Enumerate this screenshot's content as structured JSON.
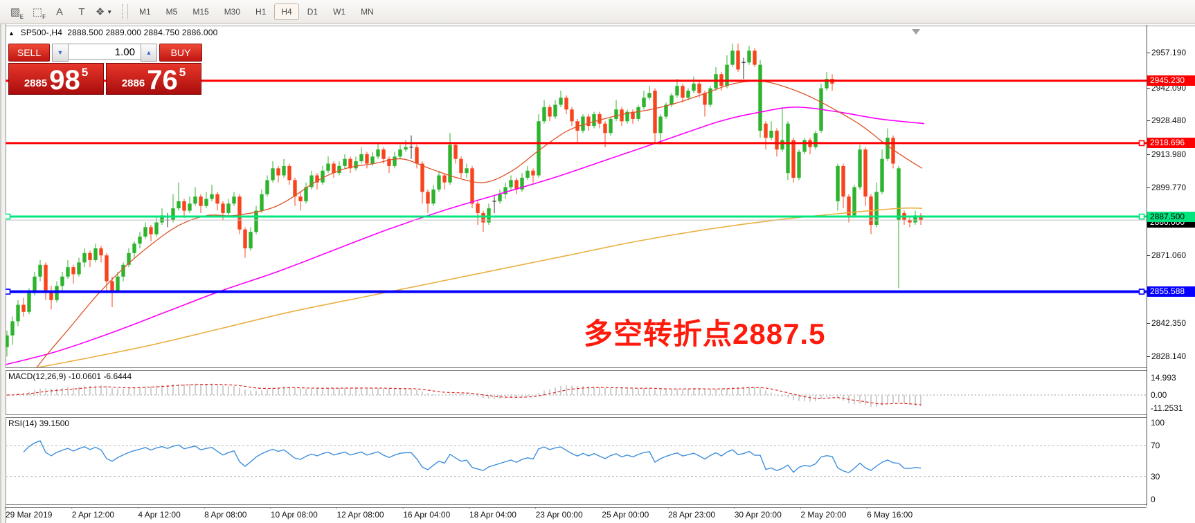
{
  "toolbar": {
    "tools": [
      {
        "name": "expert-hatch-icon",
        "glyph": "▨",
        "sub": "E"
      },
      {
        "name": "grid-pattern-icon",
        "glyph": "⬚",
        "sub": "F"
      },
      {
        "name": "text-label-icon",
        "glyph": "A",
        "sub": ""
      },
      {
        "name": "textbox-icon",
        "glyph": "T",
        "sub": ""
      },
      {
        "name": "snap-cursor-icon",
        "glyph": "❖",
        "sub": "",
        "caret": "▼"
      }
    ],
    "timeframes": [
      {
        "label": "M1",
        "active": false
      },
      {
        "label": "M5",
        "active": false
      },
      {
        "label": "M15",
        "active": false
      },
      {
        "label": "M30",
        "active": false
      },
      {
        "label": "H1",
        "active": false
      },
      {
        "label": "H4",
        "active": true
      },
      {
        "label": "D1",
        "active": false
      },
      {
        "label": "W1",
        "active": false
      },
      {
        "label": "MN",
        "active": false
      }
    ]
  },
  "header": {
    "collapse_arrow": "▲",
    "symbol": "SP500-,H4",
    "open": "2888.500",
    "high": "2889.000",
    "low": "2884.750",
    "close": "2886.000"
  },
  "trade_panel": {
    "sell_label": "SELL",
    "buy_label": "BUY",
    "volume": "1.00",
    "spin_down": "▼",
    "spin_up": "▲",
    "sell_price": {
      "handle": "2885",
      "big": "98",
      "sup": "5"
    },
    "buy_price": {
      "handle": "2886",
      "big": "76",
      "sup": "5"
    }
  },
  "annotation": {
    "text": "多空转折点2887.5",
    "color": "#fe1b0c"
  },
  "macd_panel": {
    "label": "MACD(12,26,9)",
    "main_value": "-10.0601",
    "signal_value": "-6.6444",
    "ticks": [
      {
        "label": "14.993",
        "value": 14.993
      },
      {
        "label": "0.00",
        "value": 0.0
      },
      {
        "label": "-11.2531",
        "value": -11.2531
      }
    ]
  },
  "rsi_panel": {
    "label": "RSI(14)",
    "value": "39.1500",
    "ticks": [
      {
        "label": "100",
        "value": 100
      },
      {
        "label": "70",
        "value": 70
      },
      {
        "label": "30",
        "value": 30
      },
      {
        "label": "0",
        "value": 0
      }
    ],
    "dashed_levels": [
      70,
      30
    ]
  },
  "chart_data": {
    "type": "candlestick",
    "symbol": "SP500-",
    "timeframe": "H4",
    "colors": {
      "bull": "#2db32d",
      "bear": "#f8441c",
      "doji": "#2b2b2b",
      "ma_fast": "#dd5226",
      "ma_mid": "#fb00fb",
      "ma_slow": "#e9b041",
      "hline_red": "#fe0000",
      "hline_green": "#00e57d",
      "hline_blue": "#0500fe",
      "bid_line": "#c0c0c0",
      "rsi_line": "#3d8edd",
      "macd_hist": "#cfcfcf",
      "macd_signal": "#e02020"
    },
    "price_ticks": [
      {
        "label": "2957.190",
        "price": 2957.19
      },
      {
        "label": "2942.090",
        "price": 2942.09
      },
      {
        "label": "2928.480",
        "price": 2928.48
      },
      {
        "label": "2913.980",
        "price": 2913.98
      },
      {
        "label": "2899.770",
        "price": 2899.77
      },
      {
        "label": "2871.060",
        "price": 2871.06
      },
      {
        "label": "2842.350",
        "price": 2842.35
      },
      {
        "label": "2828.140",
        "price": 2828.14
      }
    ],
    "hlines": [
      {
        "label": "2945.230",
        "price": 2945.23,
        "color": "#fe0000",
        "width": 3,
        "badge_bg": "#fe0000",
        "badge_fg": "#fff",
        "handles": []
      },
      {
        "label": "2918.696",
        "price": 2918.696,
        "color": "#fe0000",
        "width": 3,
        "badge_bg": "#fe0000",
        "badge_fg": "#fff",
        "handles": [
          1649
        ]
      },
      {
        "label": "2887.500",
        "price": 2887.5,
        "color": "#00e57d",
        "width": 3,
        "badge_bg": "#00e57d",
        "badge_fg": "#000",
        "handles": [
          11,
          1649
        ]
      },
      {
        "label": "2855.588",
        "price": 2855.588,
        "color": "#0500fe",
        "width": 4,
        "badge_bg": "#0500fe",
        "badge_fg": "#fff",
        "handles": [
          11,
          1649
        ]
      }
    ],
    "bid_marker": {
      "label": "2886.000",
      "price": 2886.0,
      "line_color": "#c0c0c0",
      "badge_bg": "#000",
      "badge_fg": "#fff"
    },
    "time_labels": [
      "29 Mar 2019",
      "2 Apr 12:00",
      "4 Apr 12:00",
      "8 Apr 08:00",
      "10 Apr 08:00",
      "12 Apr 08:00",
      "16 Apr 04:00",
      "18 Apr 04:00",
      "23 Apr 00:00",
      "25 Apr 00:00",
      "28 Apr 23:00",
      "30 Apr 20:00",
      "2 May 20:00",
      "6 May 16:00"
    ],
    "ma_fast_points": [
      [
        25,
        2812
      ],
      [
        60,
        2826
      ],
      [
        100,
        2840
      ],
      [
        140,
        2854
      ],
      [
        180,
        2866
      ],
      [
        220,
        2876
      ],
      [
        260,
        2884
      ],
      [
        300,
        2888
      ],
      [
        340,
        2888
      ],
      [
        400,
        2892
      ],
      [
        460,
        2903
      ],
      [
        500,
        2908
      ],
      [
        540,
        2910
      ],
      [
        580,
        2912
      ],
      [
        620,
        2908
      ],
      [
        660,
        2904
      ],
      [
        700,
        2902
      ],
      [
        740,
        2907
      ],
      [
        780,
        2916
      ],
      [
        820,
        2924
      ],
      [
        860,
        2928
      ],
      [
        900,
        2931
      ],
      [
        940,
        2933
      ],
      [
        980,
        2936
      ],
      [
        1020,
        2940
      ],
      [
        1060,
        2944
      ],
      [
        1100,
        2945
      ],
      [
        1140,
        2942
      ],
      [
        1180,
        2937
      ],
      [
        1240,
        2927
      ],
      [
        1280,
        2918
      ],
      [
        1310,
        2912
      ],
      [
        1332,
        2908
      ]
    ],
    "ma_mid_points": [
      [
        0,
        2824
      ],
      [
        80,
        2830
      ],
      [
        160,
        2838
      ],
      [
        240,
        2847
      ],
      [
        320,
        2856
      ],
      [
        400,
        2864
      ],
      [
        480,
        2873
      ],
      [
        560,
        2882
      ],
      [
        640,
        2890
      ],
      [
        720,
        2897
      ],
      [
        800,
        2904
      ],
      [
        880,
        2912
      ],
      [
        960,
        2920
      ],
      [
        1040,
        2928
      ],
      [
        1100,
        2932
      ],
      [
        1150,
        2934
      ],
      [
        1210,
        2932
      ],
      [
        1270,
        2929
      ],
      [
        1335,
        2927
      ]
    ],
    "ma_slow_points": [
      [
        30,
        2822
      ],
      [
        120,
        2827
      ],
      [
        220,
        2833
      ],
      [
        320,
        2840
      ],
      [
        420,
        2847
      ],
      [
        520,
        2853
      ],
      [
        620,
        2859
      ],
      [
        720,
        2865
      ],
      [
        820,
        2871
      ],
      [
        920,
        2877
      ],
      [
        1020,
        2882
      ],
      [
        1120,
        2886
      ],
      [
        1220,
        2889
      ],
      [
        1300,
        2891
      ],
      [
        1332,
        2891
      ]
    ],
    "candles": [
      [
        2832,
        2839,
        2828,
        2837
      ],
      [
        2837,
        2845,
        2833,
        2843
      ],
      [
        2843,
        2852,
        2841,
        2850
      ],
      [
        2850,
        2853,
        2845,
        2847
      ],
      [
        2847,
        2857,
        2846,
        2855
      ],
      [
        2855,
        2864,
        2854,
        2862
      ],
      [
        2862,
        2869,
        2860,
        2867
      ],
      [
        2867,
        2868,
        2852,
        2856
      ],
      [
        2856,
        2858,
        2848,
        2852
      ],
      [
        2852,
        2860,
        2851,
        2858
      ],
      [
        2858,
        2864,
        2856,
        2862
      ],
      [
        2862,
        2869,
        2861,
        2866
      ],
      [
        2866,
        2867,
        2859,
        2863
      ],
      [
        2863,
        2870,
        2862,
        2868
      ],
      [
        2868,
        2874,
        2866,
        2872
      ],
      [
        2872,
        2873,
        2866,
        2869
      ],
      [
        2869,
        2876,
        2868,
        2874
      ],
      [
        2874,
        2875,
        2868,
        2871
      ],
      [
        2871,
        2872,
        2856,
        2860
      ],
      [
        2860,
        2862,
        2849,
        2856
      ],
      [
        2856,
        2864,
        2855,
        2862
      ],
      [
        2862,
        2868,
        2860,
        2867
      ],
      [
        2867,
        2874,
        2866,
        2872
      ],
      [
        2872,
        2877,
        2870,
        2876
      ],
      [
        2876,
        2881,
        2874,
        2879
      ],
      [
        2879,
        2885,
        2878,
        2883
      ],
      [
        2883,
        2884,
        2877,
        2880
      ],
      [
        2880,
        2887,
        2879,
        2885
      ],
      [
        2885,
        2891,
        2884,
        2888
      ],
      [
        2886,
        2889,
        2883,
        2886
      ],
      [
        2886,
        2897,
        2885,
        2891
      ],
      [
        2891,
        2902,
        2890,
        2894
      ],
      [
        2894,
        2895,
        2887,
        2890
      ],
      [
        2890,
        2896,
        2889,
        2893
      ],
      [
        2893,
        2900,
        2892,
        2896
      ],
      [
        2896,
        2897,
        2889,
        2892
      ],
      [
        2892,
        2898,
        2891,
        2895
      ],
      [
        2895,
        2901,
        2894,
        2897
      ],
      [
        2897,
        2898,
        2890,
        2893
      ],
      [
        2893,
        2894,
        2886,
        2889
      ],
      [
        2889,
        2895,
        2888,
        2893
      ],
      [
        2893,
        2898,
        2892,
        2896
      ],
      [
        2896,
        2897,
        2880,
        2882
      ],
      [
        2882,
        2883,
        2870,
        2874
      ],
      [
        2874,
        2883,
        2873,
        2881
      ],
      [
        2881,
        2892,
        2880,
        2890
      ],
      [
        2890,
        2899,
        2889,
        2897
      ],
      [
        2897,
        2905,
        2896,
        2903
      ],
      [
        2903,
        2911,
        2902,
        2908
      ],
      [
        2908,
        2909,
        2902,
        2905
      ],
      [
        2905,
        2912,
        2904,
        2909
      ],
      [
        2909,
        2910,
        2901,
        2903
      ],
      [
        2903,
        2904,
        2892,
        2896
      ],
      [
        2896,
        2898,
        2890,
        2894
      ],
      [
        2894,
        2902,
        2893,
        2900
      ],
      [
        2900,
        2907,
        2899,
        2905
      ],
      [
        2905,
        2906,
        2899,
        2902
      ],
      [
        2902,
        2909,
        2901,
        2907
      ],
      [
        2907,
        2913,
        2906,
        2910
      ],
      [
        2910,
        2911,
        2904,
        2906
      ],
      [
        2906,
        2911,
        2905,
        2909
      ],
      [
        2909,
        2914,
        2908,
        2912
      ],
      [
        2912,
        2913,
        2906,
        2908
      ],
      [
        2908,
        2913,
        2907,
        2911
      ],
      [
        2911,
        2917,
        2910,
        2914
      ],
      [
        2914,
        2915,
        2908,
        2910
      ],
      [
        2910,
        2915,
        2909,
        2913
      ],
      [
        2913,
        2919,
        2912,
        2916
      ],
      [
        2916,
        2917,
        2910,
        2912
      ],
      [
        2912,
        2913,
        2906,
        2909
      ],
      [
        2909,
        2915,
        2908,
        2913
      ],
      [
        2913,
        2918,
        2912,
        2916
      ],
      [
        2916,
        2920,
        2915,
        2917
      ],
      [
        2917,
        2922,
        2912,
        2917
      ],
      [
        2917,
        2918,
        2908,
        2910
      ],
      [
        2910,
        2911,
        2893,
        2898
      ],
      [
        2898,
        2899,
        2889,
        2893
      ],
      [
        2893,
        2901,
        2892,
        2899
      ],
      [
        2899,
        2907,
        2898,
        2905
      ],
      [
        2905,
        2906,
        2899,
        2902
      ],
      [
        2902,
        2923,
        2901,
        2918
      ],
      [
        2918,
        2919,
        2910,
        2912
      ],
      [
        2912,
        2913,
        2904,
        2906
      ],
      [
        2906,
        2910,
        2904,
        2908
      ],
      [
        2908,
        2909,
        2891,
        2893
      ],
      [
        2893,
        2894,
        2884,
        2889
      ],
      [
        2889,
        2890,
        2881,
        2885
      ],
      [
        2885,
        2893,
        2884,
        2891
      ],
      [
        2894,
        2896,
        2889,
        2894
      ],
      [
        2894,
        2899,
        2893,
        2897
      ],
      [
        2897,
        2902,
        2895,
        2900
      ],
      [
        2900,
        2905,
        2899,
        2903
      ],
      [
        2903,
        2904,
        2897,
        2899
      ],
      [
        2899,
        2906,
        2898,
        2904
      ],
      [
        2904,
        2909,
        2903,
        2907
      ],
      [
        2907,
        2908,
        2902,
        2905
      ],
      [
        2905,
        2931,
        2904,
        2928
      ],
      [
        2928,
        2937,
        2927,
        2934
      ],
      [
        2934,
        2935,
        2928,
        2930
      ],
      [
        2930,
        2937,
        2929,
        2935
      ],
      [
        2935,
        2941,
        2934,
        2938
      ],
      [
        2938,
        2939,
        2931,
        2933
      ],
      [
        2933,
        2934,
        2926,
        2928
      ],
      [
        2928,
        2929,
        2919,
        2924
      ],
      [
        2924,
        2931,
        2923,
        2930
      ],
      [
        2930,
        2931,
        2924,
        2926
      ],
      [
        2926,
        2932,
        2925,
        2931
      ],
      [
        2931,
        2932,
        2925,
        2927
      ],
      [
        2927,
        2928,
        2917,
        2923
      ],
      [
        2923,
        2930,
        2922,
        2929
      ],
      [
        2929,
        2937,
        2928,
        2933
      ],
      [
        2933,
        2934,
        2926,
        2928
      ],
      [
        2928,
        2933,
        2927,
        2932
      ],
      [
        2932,
        2933,
        2927,
        2929
      ],
      [
        2929,
        2935,
        2928,
        2934
      ],
      [
        2934,
        2941,
        2933,
        2938
      ],
      [
        2938,
        2943,
        2937,
        2940
      ],
      [
        2941,
        2942,
        2919,
        2923
      ],
      [
        2923,
        2931,
        2918,
        2930
      ],
      [
        2930,
        2936,
        2929,
        2935
      ],
      [
        2935,
        2940,
        2934,
        2939
      ],
      [
        2939,
        2946,
        2938,
        2943
      ],
      [
        2943,
        2944,
        2936,
        2938
      ],
      [
        2938,
        2942,
        2937,
        2941
      ],
      [
        2941,
        2947,
        2940,
        2944
      ],
      [
        2944,
        2945,
        2938,
        2940
      ],
      [
        2940,
        2941,
        2930,
        2935
      ],
      [
        2935,
        2943,
        2934,
        2942
      ],
      [
        2942,
        2951,
        2941,
        2948
      ],
      [
        2948,
        2949,
        2941,
        2943
      ],
      [
        2943,
        2956,
        2942,
        2952
      ],
      [
        2952,
        2961,
        2951,
        2958
      ],
      [
        2958,
        2961,
        2949,
        2950
      ],
      [
        2953,
        2955,
        2946,
        2953
      ],
      [
        2953,
        2960,
        2952,
        2958
      ],
      [
        2958,
        2959,
        2951,
        2952
      ],
      [
        2924,
        2954,
        2921,
        2952
      ],
      [
        2927,
        2928,
        2916,
        2921
      ],
      [
        2921,
        2928,
        2920,
        2924
      ],
      [
        2924,
        2925,
        2913,
        2916
      ],
      [
        2916,
        2934,
        2915,
        2920
      ],
      [
        2906,
        2928,
        2903,
        2927
      ],
      [
        2920,
        2921,
        2902,
        2904
      ],
      [
        2904,
        2916,
        2903,
        2915
      ],
      [
        2915,
        2921,
        2914,
        2920
      ],
      [
        2920,
        2921,
        2914,
        2917
      ],
      [
        2917,
        2924,
        2916,
        2923
      ],
      [
        2924,
        2944,
        2923,
        2942
      ],
      [
        2942,
        2949,
        2941,
        2946
      ],
      [
        2946,
        2948,
        2941,
        2944
      ],
      [
        2894,
        2910,
        2890,
        2909
      ],
      [
        2909,
        2910,
        2891,
        2896
      ],
      [
        2896,
        2897,
        2885,
        2888
      ],
      [
        2888,
        2901,
        2887,
        2900
      ],
      [
        2900,
        2918,
        2899,
        2916
      ],
      [
        2916,
        2917,
        2892,
        2896
      ],
      [
        2896,
        2897,
        2880,
        2884
      ],
      [
        2884,
        2902,
        2883,
        2898
      ],
      [
        2898,
        2916,
        2897,
        2912
      ],
      [
        2912,
        2925,
        2911,
        2921
      ],
      [
        2921,
        2922,
        2908,
        2910
      ],
      [
        2886,
        2909,
        2857,
        2908
      ],
      [
        2889,
        2890,
        2884,
        2886
      ],
      [
        2886,
        2887,
        2883,
        2885
      ],
      [
        2885,
        2890,
        2884,
        2888
      ],
      [
        2888,
        2889,
        2884,
        2886
      ]
    ]
  }
}
